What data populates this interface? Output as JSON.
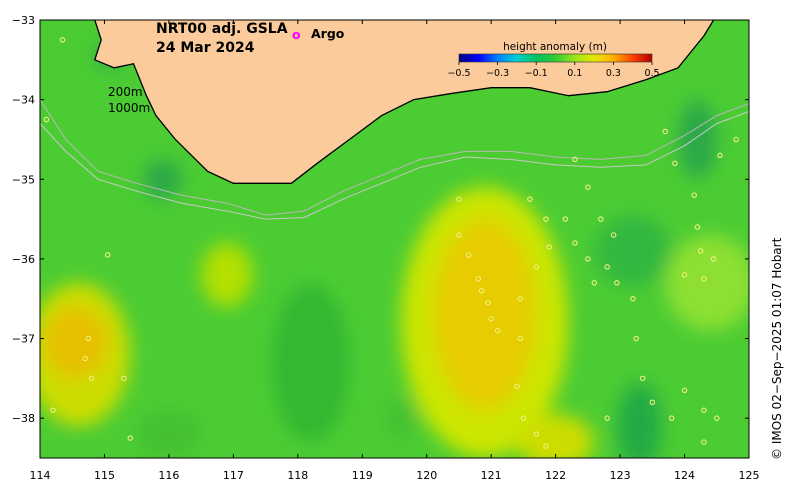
{
  "title": {
    "line1": "NRT00 adj. GSLA",
    "line2": "24 Mar 2024"
  },
  "depth_labels": [
    "200m",
    "1000m"
  ],
  "argo_legend": {
    "symbol": "o",
    "label": "Argo",
    "color": "#ff00ff"
  },
  "colorbar": {
    "title": "height anomaly (m)",
    "tick_labels": [
      "−0.5",
      "−0.3",
      "−0.1",
      "0.1",
      "0.3",
      "0.5"
    ],
    "tick_values": [
      -0.5,
      -0.3,
      -0.1,
      0.1,
      0.3,
      0.5
    ],
    "range": [
      -0.5,
      0.5
    ],
    "colors": [
      "#00007f",
      "#0000ff",
      "#0080ff",
      "#00d0d0",
      "#00c060",
      "#33cc33",
      "#99e61a",
      "#e6e600",
      "#ffb000",
      "#ff4000",
      "#b00000"
    ]
  },
  "credit": "© IMOS 02−Sep−2025 01:07 Hobart",
  "map": {
    "lon_range": [
      114,
      125
    ],
    "lat_range": [
      -38.5,
      -33
    ],
    "lon_ticks": [
      114,
      115,
      116,
      117,
      118,
      119,
      120,
      121,
      122,
      123,
      124,
      125
    ],
    "lon_tick_labels": [
      "114",
      "115",
      "116",
      "117",
      "118",
      "119",
      "120",
      "121",
      "122",
      "123",
      "124",
      "125"
    ],
    "lat_ticks": [
      -33,
      -34,
      -35,
      -36,
      -37,
      -38
    ],
    "lat_tick_labels": [
      "−33",
      "−34",
      "−35",
      "−36",
      "−37",
      "−38"
    ],
    "land_color": "#fbcb9b",
    "background_color": "#4ccc33",
    "coast": [
      [
        114.85,
        -33
      ],
      [
        114.95,
        -33.25
      ],
      [
        114.85,
        -33.5
      ],
      [
        115.15,
        -33.6
      ],
      [
        115.45,
        -33.55
      ],
      [
        115.65,
        -33.95
      ],
      [
        115.8,
        -34.2
      ],
      [
        116.1,
        -34.5
      ],
      [
        116.6,
        -34.9
      ],
      [
        117.0,
        -35.05
      ],
      [
        117.5,
        -35.05
      ],
      [
        117.9,
        -35.05
      ],
      [
        118.3,
        -34.8
      ],
      [
        118.8,
        -34.5
      ],
      [
        119.3,
        -34.2
      ],
      [
        119.8,
        -34.0
      ],
      [
        120.4,
        -33.92
      ],
      [
        121.0,
        -33.85
      ],
      [
        121.6,
        -33.85
      ],
      [
        122.2,
        -33.95
      ],
      [
        122.8,
        -33.9
      ],
      [
        123.4,
        -33.75
      ],
      [
        123.9,
        -33.6
      ],
      [
        124.3,
        -33.2
      ],
      [
        124.45,
        -33
      ]
    ],
    "contour_200m": [
      [
        114,
        -34.0
      ],
      [
        114.4,
        -34.5
      ],
      [
        114.9,
        -34.9
      ],
      [
        115.5,
        -35.05
      ],
      [
        116.2,
        -35.2
      ],
      [
        116.9,
        -35.3
      ],
      [
        117.5,
        -35.45
      ],
      [
        118.1,
        -35.4
      ],
      [
        118.7,
        -35.15
      ],
      [
        119.3,
        -34.95
      ],
      [
        119.9,
        -34.75
      ],
      [
        120.6,
        -34.65
      ],
      [
        121.3,
        -34.65
      ],
      [
        122.0,
        -34.72
      ],
      [
        122.7,
        -34.75
      ],
      [
        123.4,
        -34.7
      ],
      [
        124.0,
        -34.45
      ],
      [
        124.5,
        -34.2
      ],
      [
        125,
        -34.05
      ]
    ],
    "contour_1000m": [
      [
        114,
        -34.3
      ],
      [
        114.4,
        -34.65
      ],
      [
        114.9,
        -35.0
      ],
      [
        115.5,
        -35.15
      ],
      [
        116.2,
        -35.3
      ],
      [
        116.9,
        -35.4
      ],
      [
        117.5,
        -35.5
      ],
      [
        118.1,
        -35.48
      ],
      [
        118.7,
        -35.25
      ],
      [
        119.3,
        -35.05
      ],
      [
        119.9,
        -34.85
      ],
      [
        120.6,
        -34.72
      ],
      [
        121.3,
        -34.75
      ],
      [
        122.0,
        -34.82
      ],
      [
        122.7,
        -34.85
      ],
      [
        123.4,
        -34.82
      ],
      [
        124.0,
        -34.58
      ],
      [
        124.5,
        -34.3
      ],
      [
        125,
        -34.15
      ]
    ],
    "anomaly_blobs": [
      {
        "lon": 120.9,
        "lat": -36.8,
        "rlon": 1.3,
        "rlat": 1.7,
        "color": "#cce600"
      },
      {
        "lon": 120.9,
        "lat": -36.7,
        "rlon": 0.8,
        "rlat": 1.2,
        "color": "#e6cc00"
      },
      {
        "lon": 114.6,
        "lat": -37.2,
        "rlon": 0.8,
        "rlat": 0.9,
        "color": "#ccdd00"
      },
      {
        "lon": 114.55,
        "lat": -37.05,
        "rlon": 0.5,
        "rlat": 0.45,
        "color": "#e6c000"
      },
      {
        "lon": 122.0,
        "lat": -38.3,
        "rlon": 0.6,
        "rlat": 0.35,
        "color": "#ccdd00"
      },
      {
        "lon": 116.9,
        "lat": -36.2,
        "rlon": 0.4,
        "rlat": 0.4,
        "color": "#b3e000"
      },
      {
        "lon": 124.4,
        "lat": -36.3,
        "rlon": 0.7,
        "rlat": 0.6,
        "color": "#8de033"
      },
      {
        "lon": 118.2,
        "lat": -37.3,
        "rlon": 0.6,
        "rlat": 1.0,
        "color": "#30b830"
      },
      {
        "lon": 123.3,
        "lat": -38.1,
        "rlon": 0.35,
        "rlat": 0.55,
        "color": "#22aa44"
      },
      {
        "lon": 116.0,
        "lat": -38.2,
        "rlon": 0.5,
        "rlat": 0.3,
        "color": "#44c033"
      },
      {
        "lon": 119.6,
        "lat": -38.0,
        "rlon": 0.25,
        "rlat": 0.25,
        "color": "#44c033"
      },
      {
        "lon": 123.2,
        "lat": -35.9,
        "rlon": 0.6,
        "rlat": 0.45,
        "color": "#30b840"
      },
      {
        "lon": 124.2,
        "lat": -34.5,
        "rlon": 0.3,
        "rlat": 0.5,
        "color": "#2aa848"
      },
      {
        "lon": 115.9,
        "lat": -35.0,
        "rlon": 0.3,
        "rlat": 0.25,
        "color": "#2aa848"
      },
      {
        "lon": 115.1,
        "lat": -33.45,
        "rlon": 0.25,
        "rlat": 0.15,
        "color": "#2aa848"
      }
    ],
    "argo_floats": [
      [
        114.35,
        -33.25
      ],
      [
        114.1,
        -34.25
      ],
      [
        115.05,
        -35.95
      ],
      [
        114.75,
        -37.0
      ],
      [
        114.7,
        -37.25
      ],
      [
        114.2,
        -37.9
      ],
      [
        114.8,
        -37.5
      ],
      [
        115.3,
        -37.5
      ],
      [
        115.4,
        -38.25
      ],
      [
        120.5,
        -35.25
      ],
      [
        120.5,
        -35.7
      ],
      [
        120.65,
        -35.95
      ],
      [
        120.8,
        -36.25
      ],
      [
        120.85,
        -36.4
      ],
      [
        120.95,
        -36.55
      ],
      [
        121.0,
        -36.75
      ],
      [
        121.1,
        -36.9
      ],
      [
        121.45,
        -36.5
      ],
      [
        121.45,
        -37.0
      ],
      [
        121.6,
        -35.25
      ],
      [
        121.85,
        -35.5
      ],
      [
        121.9,
        -35.85
      ],
      [
        121.7,
        -36.1
      ],
      [
        121.4,
        -37.6
      ],
      [
        121.5,
        -38.0
      ],
      [
        121.7,
        -38.2
      ],
      [
        121.85,
        -38.35
      ],
      [
        122.15,
        -35.5
      ],
      [
        122.3,
        -35.8
      ],
      [
        122.5,
        -36.0
      ],
      [
        122.6,
        -36.3
      ],
      [
        122.3,
        -34.75
      ],
      [
        122.5,
        -35.1
      ],
      [
        122.7,
        -35.5
      ],
      [
        122.9,
        -35.7
      ],
      [
        122.8,
        -36.1
      ],
      [
        122.95,
        -36.3
      ],
      [
        123.2,
        -36.5
      ],
      [
        123.25,
        -37.0
      ],
      [
        123.35,
        -37.5
      ],
      [
        123.5,
        -37.8
      ],
      [
        123.8,
        -38.0
      ],
      [
        124.0,
        -37.65
      ],
      [
        124.3,
        -37.9
      ],
      [
        124.5,
        -38.0
      ],
      [
        123.7,
        -34.4
      ],
      [
        123.85,
        -34.8
      ],
      [
        124.15,
        -35.2
      ],
      [
        124.2,
        -35.6
      ],
      [
        124.25,
        -35.9
      ],
      [
        124.45,
        -36.0
      ],
      [
        124.3,
        -36.25
      ],
      [
        124.0,
        -36.2
      ],
      [
        124.8,
        -34.5
      ],
      [
        124.55,
        -34.7
      ],
      [
        122.8,
        -38.0
      ],
      [
        124.3,
        -38.3
      ]
    ]
  }
}
